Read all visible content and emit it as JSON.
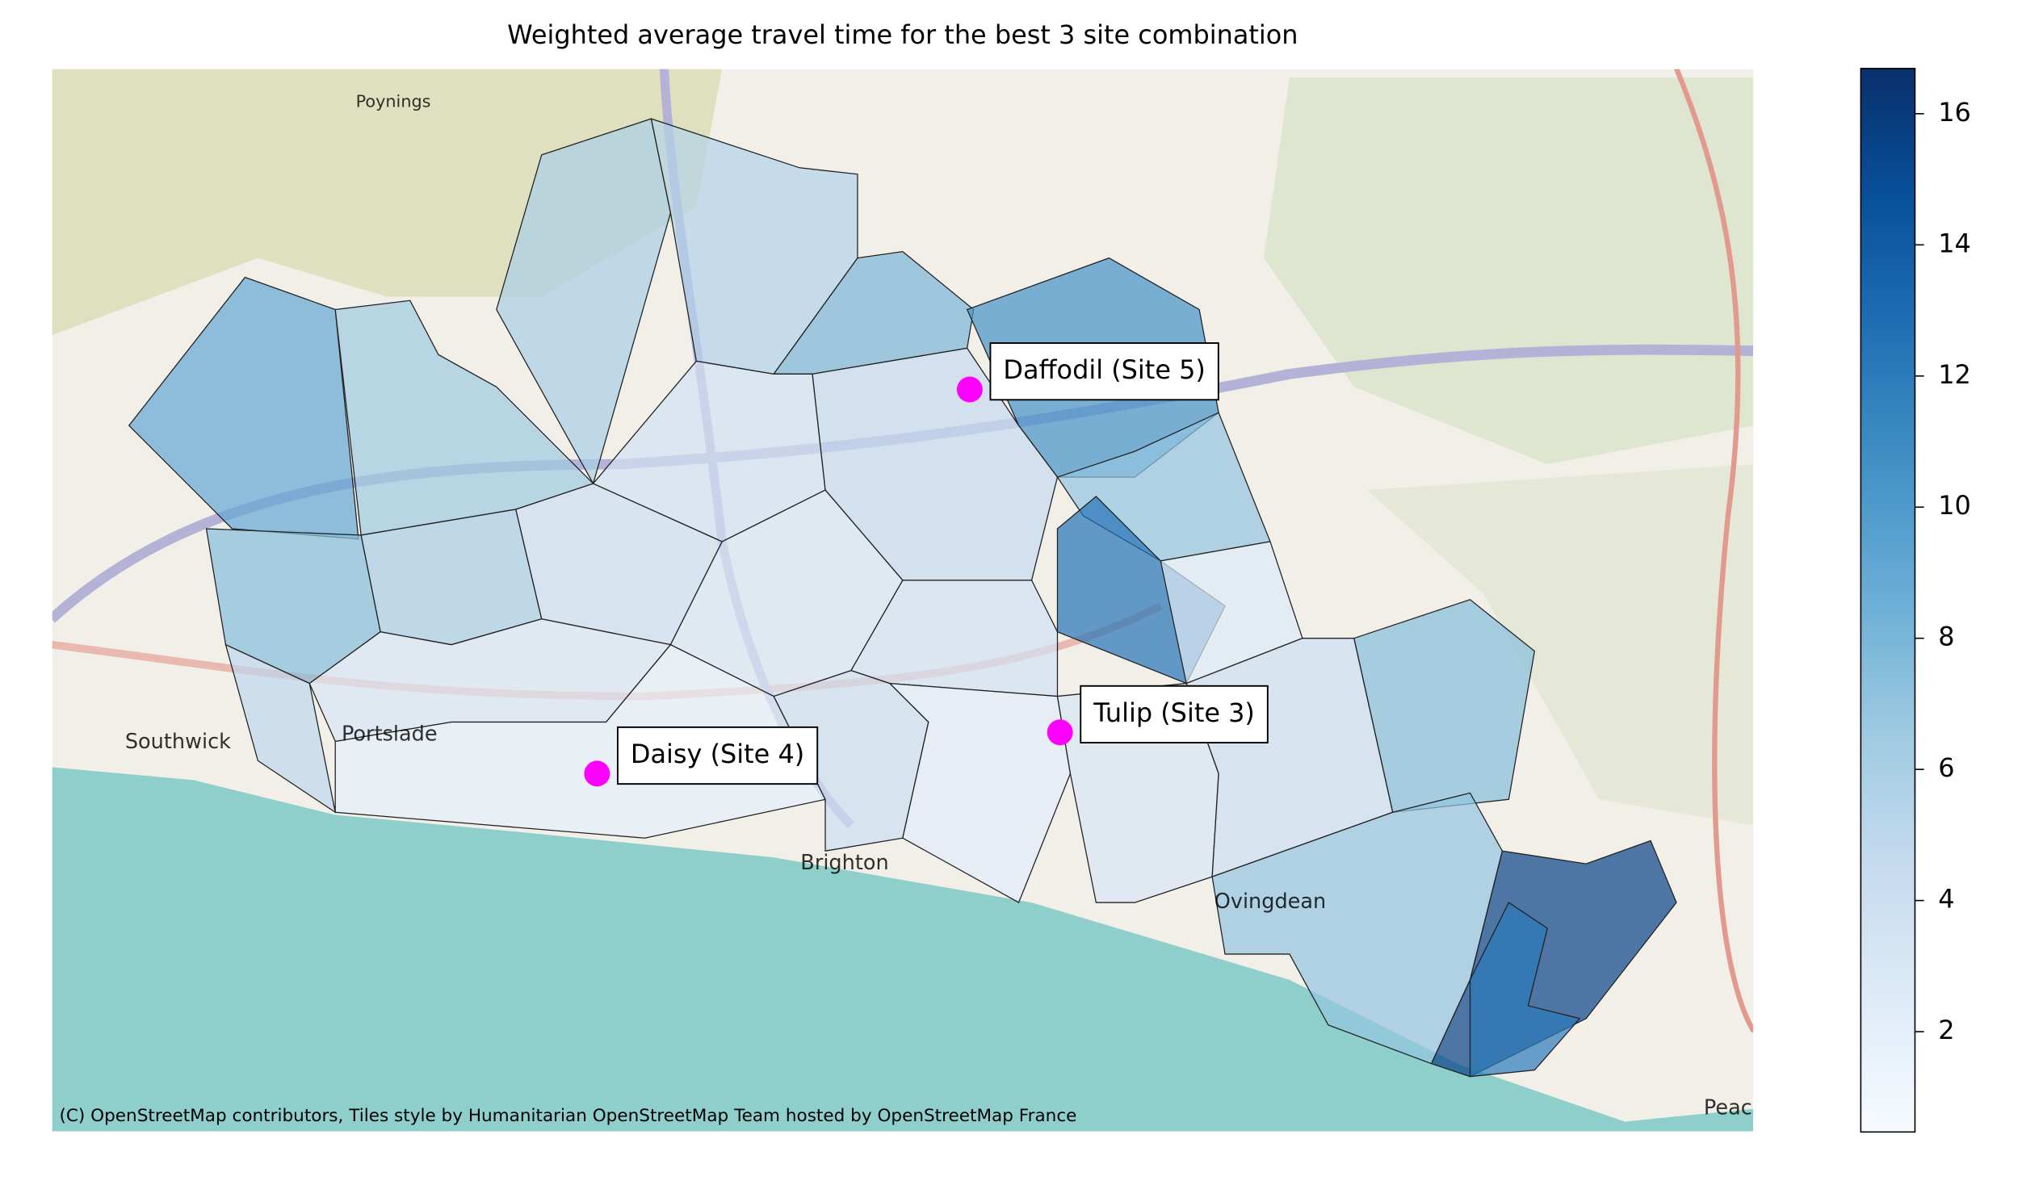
{
  "title": "Weighted average travel time for the best 3 site combination",
  "map": {
    "attribution": "(C) OpenStreetMap contributors, Tiles style by Humanitarian OpenStreetMap Team hosted by OpenStreetMap France",
    "place_labels": [
      "Poynings",
      "Southwick",
      "Portslade",
      "Brighton",
      "Ovingdean",
      "Peac"
    ],
    "region_values": [
      9,
      6.5,
      6,
      5.5,
      8,
      10.5,
      7,
      12.5,
      7.5,
      6,
      4,
      3.5,
      4.5,
      3,
      3.5,
      2.5,
      5,
      3,
      2,
      4,
      2.2,
      3,
      4,
      7.5,
      7,
      15.5,
      12
    ],
    "region_opacity": 0.7,
    "sites": [
      {
        "label": "Daffodil (Site 5)"
      },
      {
        "label": "Tulip (Site 3)"
      },
      {
        "label": "Daisy (Site 4)"
      }
    ],
    "marker_color": "#ff00ff"
  },
  "colorbar": {
    "colormap": "Blues",
    "lim": [
      0.47,
      16.69
    ],
    "ticks": [
      2,
      4,
      6,
      8,
      10,
      12,
      14,
      16
    ]
  }
}
